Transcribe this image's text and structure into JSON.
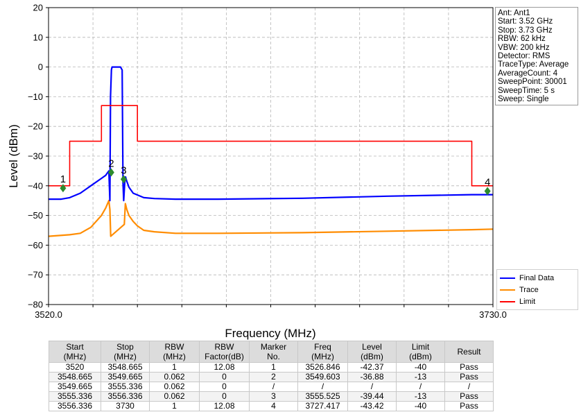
{
  "chart_data": {
    "type": "line",
    "xlabel": "Frequency (MHz)",
    "ylabel": "Level (dBm)",
    "xlim": [
      3520.0,
      3730.0
    ],
    "ylim": [
      -80,
      20
    ],
    "x_tick_labels": [
      "3520.0",
      "3730.0"
    ],
    "y_ticks": [
      20,
      10,
      0,
      -10,
      -20,
      -30,
      -40,
      -50,
      -60,
      -70,
      -80
    ],
    "y_tick_labels": [
      "20",
      "10",
      "0",
      "−10",
      "−20",
      "−30",
      "−40",
      "−50",
      "−60",
      "−70",
      "−80"
    ],
    "grid": true,
    "legend_position": "bottom-right",
    "series": [
      {
        "name": "Final Data",
        "color": "#0000ff",
        "x": [
          3520,
          3526,
          3530,
          3535,
          3540,
          3545,
          3547,
          3548.5,
          3549.0,
          3549.3,
          3549.7,
          3550.0,
          3552.0,
          3554.0,
          3554.8,
          3555.2,
          3555.5,
          3556.0,
          3556.4,
          3557,
          3558,
          3560,
          3565,
          3570,
          3580,
          3600,
          3640,
          3680,
          3720,
          3730
        ],
        "y": [
          -44.5,
          -44.5,
          -44.0,
          -42.5,
          -40.0,
          -37.5,
          -36.5,
          -35,
          -45,
          -10,
          -1,
          0,
          0,
          0,
          -1,
          -39,
          -45,
          -39,
          -37,
          -38.5,
          -40.5,
          -42.5,
          -44,
          -44.3,
          -44.5,
          -44.5,
          -44.2,
          -43.5,
          -43,
          -43
        ]
      },
      {
        "name": "Trace",
        "color": "#ff8c00",
        "x": [
          3520,
          3530,
          3535,
          3540,
          3545,
          3547,
          3548.5,
          3549.0,
          3549.4,
          3555.8,
          3556.3,
          3557,
          3558,
          3560,
          3562,
          3565,
          3570,
          3580,
          3600,
          3640,
          3680,
          3720,
          3730
        ],
        "y": [
          -57,
          -56.5,
          -56,
          -54,
          -50,
          -47.5,
          -45,
          -48,
          -57,
          -53,
          -46,
          -48,
          -50,
          -52,
          -53.5,
          -55,
          -55.5,
          -56,
          -56,
          -55.8,
          -55.3,
          -54.8,
          -54.6
        ]
      },
      {
        "name": "Limit",
        "color": "#ff0000",
        "x": [
          3520,
          3530,
          3530,
          3545,
          3545,
          3550,
          3550,
          3562,
          3562,
          3720,
          3720,
          3730
        ],
        "y": [
          -40,
          -40,
          -25,
          -25,
          -13,
          -13,
          -13,
          -13,
          -25,
          -25,
          -40,
          -40
        ]
      }
    ],
    "markers": [
      {
        "label": "1",
        "x": 3526.846,
        "y": -40.8
      },
      {
        "label": "2",
        "x": 3549.603,
        "y": -35.5
      },
      {
        "label": "3",
        "x": 3555.525,
        "y": -37.8
      },
      {
        "label": "4",
        "x": 3727.417,
        "y": -41.8
      }
    ],
    "marker_color": "#2e8b2e"
  },
  "info_box": [
    "Ant: Ant1",
    "Start: 3.52 GHz",
    "Stop: 3.73 GHz",
    "RBW: 62 kHz",
    "VBW: 200 kHz",
    "Detector: RMS",
    "TraceType: Average",
    "AverageCount: 4",
    "SweepPoint: 30001",
    "SweepTime: 5 s",
    "Sweep: Single"
  ],
  "legend": [
    {
      "name": "Final Data",
      "color": "#0000ff"
    },
    {
      "name": "Trace",
      "color": "#ff8c00"
    },
    {
      "name": "Limit",
      "color": "#ff0000"
    }
  ],
  "table": {
    "headers": [
      [
        "Start",
        "(MHz)"
      ],
      [
        "Stop",
        "(MHz)"
      ],
      [
        "RBW",
        "(MHz)"
      ],
      [
        "RBW",
        "Factor(dB)"
      ],
      [
        "Marker",
        "No."
      ],
      [
        "Freq",
        "(MHz)"
      ],
      [
        "Level",
        "(dBm)"
      ],
      [
        "Limit",
        "(dBm)"
      ],
      [
        "Result",
        ""
      ]
    ],
    "rows": [
      [
        "3520",
        "3548.665",
        "1",
        "12.08",
        "1",
        "3526.846",
        "-42.37",
        "-40",
        "Pass"
      ],
      [
        "3548.665",
        "3549.665",
        "0.062",
        "0",
        "2",
        "3549.603",
        "-36.88",
        "-13",
        "Pass"
      ],
      [
        "3549.665",
        "3555.336",
        "0.062",
        "0",
        "/",
        "/",
        "/",
        "/",
        "/"
      ],
      [
        "3555.336",
        "3556.336",
        "0.062",
        "0",
        "3",
        "3555.525",
        "-39.44",
        "-13",
        "Pass"
      ],
      [
        "3556.336",
        "3730",
        "1",
        "12.08",
        "4",
        "3727.417",
        "-43.42",
        "-40",
        "Pass"
      ]
    ]
  }
}
